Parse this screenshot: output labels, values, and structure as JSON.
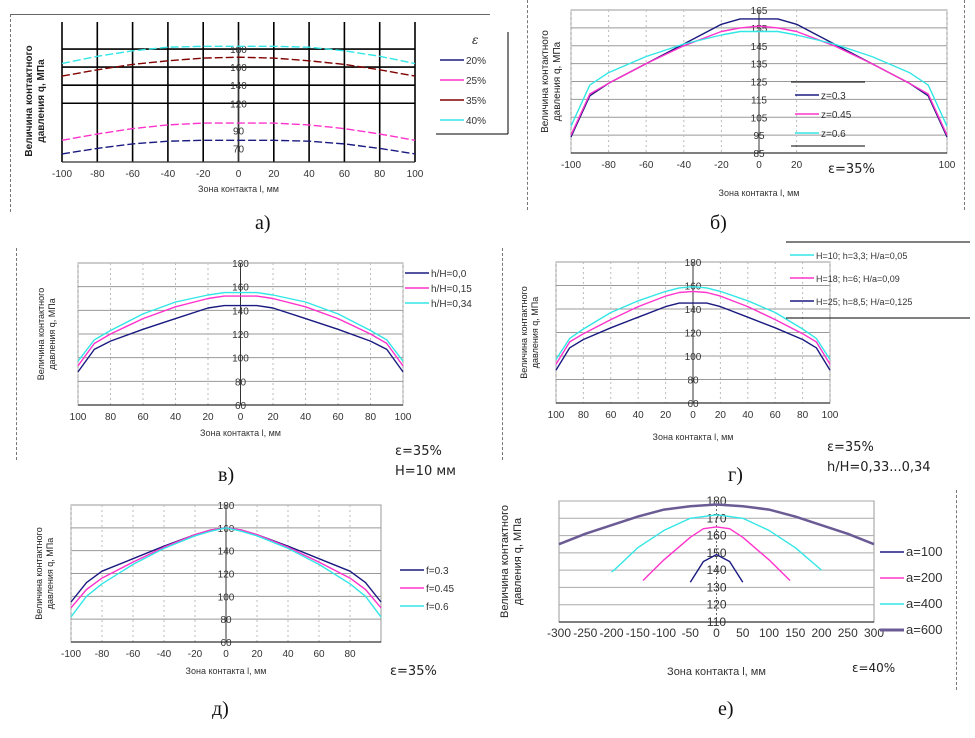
{
  "chart_data": [
    {
      "id": "a",
      "type": "line",
      "caption": "а)",
      "xlabel": "Зона контакта  l, мм",
      "ylabel": "Величина контактного давления  q, МПа",
      "x_ticks": [
        "-100",
        "-80",
        "-60",
        "-40",
        "-20",
        "0",
        "20",
        "40",
        "60",
        "80",
        "100"
      ],
      "y_ticks": [
        70,
        90,
        120,
        140,
        160,
        180
      ],
      "ylim": [
        55,
        190
      ],
      "xlim": [
        -100,
        100
      ],
      "legend_title": "ε",
      "x": [
        -100,
        -80,
        -60,
        -40,
        -20,
        0,
        20,
        40,
        60,
        80,
        100
      ],
      "series": [
        {
          "name": "20%",
          "color": "#1a1a80",
          "values": [
            64,
            70,
            75,
            78,
            79,
            79,
            79,
            78,
            75,
            70,
            64
          ]
        },
        {
          "name": "25%",
          "color": "#ff33cc",
          "values": [
            79,
            86,
            92,
            96,
            98,
            98,
            98,
            96,
            92,
            86,
            79
          ]
        },
        {
          "name": "35%",
          "color": "#800000",
          "values": [
            150,
            157,
            163,
            167,
            170,
            171,
            170,
            167,
            163,
            157,
            150
          ]
        },
        {
          "name": "40%",
          "color": "#33e6e6",
          "values": [
            164,
            172,
            178,
            182,
            183,
            183,
            183,
            182,
            178,
            172,
            164
          ]
        }
      ]
    },
    {
      "id": "b",
      "type": "line",
      "caption": "б)",
      "xlabel": "Зона контакта  l, мм",
      "ylabel": "Величина контактного давления  q, МПа",
      "x_ticks": [
        "-100",
        "-80",
        "-60",
        "-40",
        "-20",
        "0",
        "20",
        "100"
      ],
      "y_ticks": [
        85,
        95,
        105,
        115,
        125,
        135,
        145,
        155,
        165
      ],
      "ylim": [
        85,
        165
      ],
      "xlim": [
        -100,
        100
      ],
      "annotation": "ε=35%",
      "x": [
        -100,
        -90,
        -80,
        -60,
        -40,
        -20,
        -10,
        0,
        10,
        20,
        40,
        60,
        80,
        90,
        100
      ],
      "series": [
        {
          "name": "z=0.3",
          "color": "#1a1a80",
          "values": [
            94,
            117,
            124,
            135,
            146,
            157,
            160,
            160,
            160,
            157,
            146,
            135,
            124,
            117,
            94
          ]
        },
        {
          "name": "z=0.45",
          "color": "#ff33cc",
          "values": [
            95,
            118,
            124,
            135,
            145,
            153,
            155,
            156,
            155,
            153,
            145,
            135,
            124,
            118,
            95
          ]
        },
        {
          "name": "z=0.6",
          "color": "#33e6e6",
          "values": [
            100,
            123,
            130,
            139,
            146,
            151,
            153,
            153,
            153,
            151,
            146,
            139,
            130,
            123,
            100
          ]
        }
      ]
    },
    {
      "id": "v",
      "type": "line",
      "caption": "в)",
      "xlabel": "Зона контакта  l, мм",
      "ylabel": "Величина контактного давления  q, МПа",
      "x_ticks": [
        "100",
        "80",
        "60",
        "40",
        "20",
        "0",
        "20",
        "40",
        "60",
        "80",
        "100"
      ],
      "y_ticks": [
        60,
        80,
        100,
        120,
        140,
        160,
        180
      ],
      "ylim": [
        60,
        180
      ],
      "xlim": [
        -100,
        100
      ],
      "annotation": [
        "ε=35%",
        "H=10 мм"
      ],
      "x": [
        -100,
        -90,
        -80,
        -60,
        -40,
        -20,
        -10,
        0,
        10,
        20,
        40,
        60,
        80,
        90,
        100
      ],
      "series": [
        {
          "name": "h/H=0,0",
          "color": "#1a1a80",
          "values": [
            88,
            107,
            114,
            124,
            133,
            142,
            144,
            144,
            144,
            142,
            133,
            124,
            114,
            107,
            88
          ]
        },
        {
          "name": "h/H=0,15",
          "color": "#ff33cc",
          "values": [
            93,
            112,
            120,
            133,
            143,
            150,
            152,
            152,
            152,
            150,
            143,
            133,
            120,
            112,
            93
          ]
        },
        {
          "name": "h/H=0,34",
          "color": "#33e6e6",
          "values": [
            97,
            115,
            123,
            137,
            147,
            153,
            155,
            155,
            155,
            153,
            147,
            137,
            123,
            115,
            97
          ]
        }
      ]
    },
    {
      "id": "g",
      "type": "line",
      "caption": "г)",
      "xlabel": "Зона контакта  l, мм",
      "ylabel": "Величина контактного давления  q, МПа",
      "x_ticks": [
        "100",
        "80",
        "60",
        "40",
        "20",
        "0",
        "20",
        "40",
        "60",
        "80",
        "100"
      ],
      "y_ticks": [
        60,
        80,
        100,
        120,
        140,
        160,
        180
      ],
      "ylim": [
        60,
        180
      ],
      "xlim": [
        -100,
        100
      ],
      "annotation": [
        "ε=35%",
        "h/H=0,33...0,34"
      ],
      "x": [
        -100,
        -90,
        -80,
        -60,
        -40,
        -20,
        -10,
        0,
        10,
        20,
        40,
        60,
        80,
        90,
        100
      ],
      "series": [
        {
          "name": "H=10; h=3,3; H/a=0,05",
          "color": "#33e6e6",
          "values": [
            97,
            115,
            123,
            137,
            147,
            155,
            158,
            159,
            158,
            155,
            147,
            137,
            123,
            115,
            97
          ]
        },
        {
          "name": "H=18; h=6; H/a=0,09",
          "color": "#ff33cc",
          "values": [
            93,
            112,
            119,
            131,
            142,
            151,
            154,
            155,
            154,
            151,
            142,
            131,
            119,
            112,
            93
          ]
        },
        {
          "name": "H=25; h=8,5; H/a=0,125",
          "color": "#1a1a80",
          "values": [
            88,
            107,
            114,
            124,
            133,
            142,
            145,
            145,
            145,
            142,
            133,
            124,
            114,
            107,
            88
          ]
        }
      ]
    },
    {
      "id": "d",
      "type": "line",
      "caption": "д)",
      "xlabel": "Зона контакта  l, мм",
      "ylabel": "Величина контактного давления  q, МПа",
      "x_ticks": [
        "-100",
        "-80",
        "-60",
        "-40",
        "-20",
        "0",
        "20",
        "40",
        "60",
        "80"
      ],
      "y_ticks": [
        60,
        80,
        100,
        120,
        140,
        160,
        180
      ],
      "ylim": [
        60,
        180
      ],
      "xlim": [
        -100,
        100
      ],
      "annotation": "ε=35%",
      "x": [
        -100,
        -90,
        -80,
        -60,
        -40,
        -20,
        -10,
        0,
        10,
        20,
        40,
        60,
        80,
        90,
        100
      ],
      "series": [
        {
          "name": "f=0.3",
          "color": "#1a1a80",
          "values": [
            95,
            112,
            122,
            133,
            144,
            154,
            158,
            160,
            158,
            154,
            144,
            133,
            122,
            112,
            95
          ]
        },
        {
          "name": "f=0.45",
          "color": "#ff33cc",
          "values": [
            90,
            106,
            116,
            130,
            143,
            154,
            158,
            160,
            158,
            154,
            143,
            130,
            116,
            106,
            90
          ]
        },
        {
          "name": "f=0.6",
          "color": "#33e6e6",
          "values": [
            82,
            100,
            111,
            128,
            142,
            153,
            157,
            160,
            157,
            153,
            142,
            128,
            111,
            100,
            82
          ]
        }
      ]
    },
    {
      "id": "e",
      "type": "line",
      "caption": "е)",
      "xlabel": "Зона контакта  l, мм",
      "ylabel": "Величина контактного давления  q, МПа",
      "x_ticks": [
        "-300",
        "-250",
        "-200",
        "-150",
        "-100",
        "-50",
        "0",
        "50",
        "100",
        "150",
        "200",
        "250",
        "300"
      ],
      "y_ticks": [
        110,
        120,
        130,
        140,
        150,
        160,
        170,
        180
      ],
      "ylim": [
        110,
        180
      ],
      "xlim": [
        -300,
        300
      ],
      "annotation": "ε=40%",
      "series": [
        {
          "name": "a=100",
          "color": "#1a1a80",
          "x": [
            -50,
            -25,
            0,
            25,
            50
          ],
          "values": [
            133,
            145,
            149,
            145,
            133
          ]
        },
        {
          "name": "a=200",
          "color": "#ff33cc",
          "x": [
            -140,
            -100,
            -50,
            -25,
            0,
            25,
            50,
            100,
            140
          ],
          "values": [
            134,
            146,
            159,
            164,
            165,
            164,
            159,
            146,
            134
          ]
        },
        {
          "name": "a=400",
          "color": "#33e6e6",
          "x": [
            -200,
            -195,
            -150,
            -100,
            -50,
            0,
            50,
            100,
            150,
            200
          ],
          "values": [
            139,
            140,
            153,
            163,
            170,
            172,
            170,
            163,
            153,
            140
          ]
        },
        {
          "name": "a=600",
          "color": "#6b5b95",
          "x": [
            -300,
            -250,
            -200,
            -150,
            -100,
            -50,
            0,
            50,
            100,
            150,
            200,
            250,
            300
          ],
          "values": [
            155,
            161,
            166,
            171,
            175,
            177,
            178,
            177,
            175,
            171,
            166,
            161,
            155
          ]
        }
      ]
    }
  ]
}
